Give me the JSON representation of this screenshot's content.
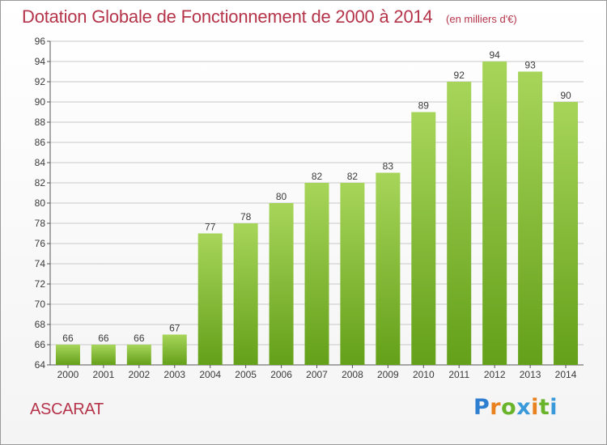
{
  "title": "Dotation Globale de Fonctionnement de 2000 à 2014",
  "subtitle": "(en milliers d'€)",
  "commune": "ASCARAT",
  "logo": {
    "letters": [
      "P",
      "r",
      "o",
      "x",
      "i",
      "t",
      "i"
    ],
    "colors": [
      "#2f7fd0",
      "#e8821e",
      "#6ab42c",
      "#3a9ad9",
      "#e8821e",
      "#6ab42c",
      "#3a9ad9"
    ]
  },
  "colors": {
    "bar_top": "#a7d55a",
    "bar_bottom": "#64a019",
    "grid": "#c8c8c8",
    "title": "#b5344a"
  },
  "chart_data": {
    "type": "bar",
    "title": "Dotation Globale de Fonctionnement de 2000 à 2014",
    "subtitle": "(en milliers d'€)",
    "categories": [
      "2000",
      "2001",
      "2002",
      "2003",
      "2004",
      "2005",
      "2006",
      "2007",
      "2008",
      "2009",
      "2010",
      "2011",
      "2012",
      "2013",
      "2014"
    ],
    "values": [
      66,
      66,
      66,
      67,
      77,
      78,
      80,
      82,
      82,
      83,
      89,
      92,
      94,
      93,
      90
    ],
    "ylim": [
      64,
      96
    ],
    "yticks": [
      64,
      66,
      68,
      70,
      72,
      74,
      76,
      78,
      80,
      82,
      84,
      86,
      88,
      90,
      92,
      94,
      96
    ],
    "grid": true,
    "data_labels": true
  }
}
